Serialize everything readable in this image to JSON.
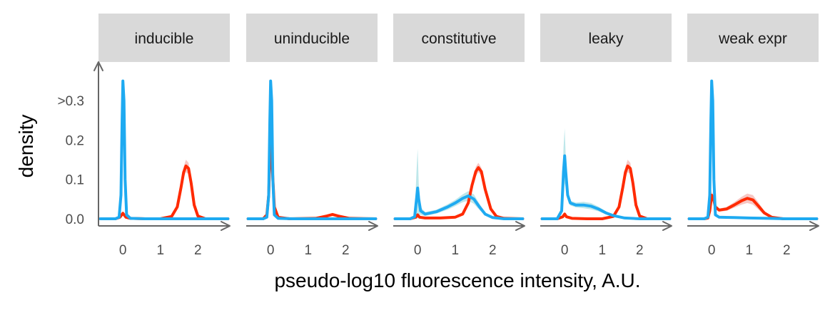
{
  "chart_data": {
    "type": "area",
    "xlabel": "pseudo-log10 fluorescence intensity, A.U.",
    "ylabel": "density",
    "xlim": [
      -0.65,
      2.85
    ],
    "ylim": [
      0,
      0.38
    ],
    "x_ticks": [
      {
        "value": 0,
        "label": "0"
      },
      {
        "value": 1,
        "label": "1"
      },
      {
        "value": 2,
        "label": "2"
      }
    ],
    "y_ticks": [
      {
        "value": 0.0,
        "label": "0.0"
      },
      {
        "value": 0.1,
        "label": "0.1"
      },
      {
        "value": 0.2,
        "label": "0.2"
      },
      {
        "value": 0.3,
        "label": ">0.3"
      }
    ],
    "colors": {
      "red": "#ff2a00",
      "blue": "#1eaaf1",
      "red_band": "#f4b4b0",
      "blue_band": "#a8dfe3",
      "strip": "#d9d9d9",
      "axis": "#666666"
    },
    "panels": [
      {
        "label": "inducible",
        "red": {
          "x": [
            -0.6,
            -0.2,
            -0.08,
            0.0,
            0.08,
            0.2,
            0.6,
            1.0,
            1.3,
            1.45,
            1.55,
            1.62,
            1.68,
            1.75,
            1.82,
            1.9,
            2.0,
            2.2,
            2.8
          ],
          "y": [
            0.0,
            0.0,
            0.004,
            0.014,
            0.004,
            0.001,
            0.0,
            0.0,
            0.006,
            0.03,
            0.08,
            0.118,
            0.134,
            0.128,
            0.09,
            0.035,
            0.007,
            0.0,
            0.0
          ],
          "band": [
            0,
            0,
            0.001,
            0.004,
            0.001,
            0,
            0,
            0,
            0.002,
            0.006,
            0.012,
            0.014,
            0.016,
            0.014,
            0.01,
            0.005,
            0.002,
            0,
            0
          ]
        },
        "blue": {
          "x": [
            -0.6,
            -0.2,
            -0.1,
            -0.05,
            -0.02,
            0.0,
            0.03,
            0.06,
            0.1,
            0.2,
            0.6,
            1.0,
            2.0,
            2.8
          ],
          "y": [
            0.0,
            0.0,
            0.004,
            0.06,
            0.25,
            0.35,
            0.3,
            0.1,
            0.01,
            0.001,
            0.0,
            0.0,
            0.0,
            0.0
          ],
          "band": [
            0,
            0,
            0.001,
            0.005,
            0.01,
            0.005,
            0.01,
            0.005,
            0.001,
            0,
            0,
            0,
            0,
            0
          ]
        }
      },
      {
        "label": "uninducible",
        "red": {
          "x": [
            -0.6,
            -0.2,
            -0.1,
            -0.05,
            0.0,
            0.05,
            0.1,
            0.2,
            0.5,
            1.2,
            1.5,
            1.65,
            1.8,
            2.1,
            2.8
          ],
          "y": [
            0.0,
            0.0,
            0.01,
            0.06,
            0.22,
            0.12,
            0.03,
            0.004,
            0.0,
            0.001,
            0.007,
            0.011,
            0.007,
            0.001,
            0.0
          ],
          "band": [
            0,
            0,
            0.002,
            0.006,
            0.01,
            0.006,
            0.002,
            0.001,
            0,
            0,
            0.002,
            0.002,
            0.002,
            0,
            0
          ]
        },
        "blue": {
          "x": [
            -0.6,
            -0.2,
            -0.1,
            -0.05,
            -0.02,
            0.0,
            0.03,
            0.06,
            0.1,
            0.2,
            0.6,
            1.0,
            2.0,
            2.8
          ],
          "y": [
            0.0,
            0.0,
            0.004,
            0.06,
            0.25,
            0.35,
            0.3,
            0.1,
            0.01,
            0.001,
            0.0,
            0.0,
            0.0,
            0.0
          ],
          "band": [
            0,
            0,
            0.001,
            0.005,
            0.01,
            0.005,
            0.01,
            0.005,
            0.001,
            0,
            0,
            0,
            0,
            0
          ]
        }
      },
      {
        "label": "constitutive",
        "red": {
          "x": [
            -0.6,
            -0.2,
            -0.05,
            0.0,
            0.05,
            0.2,
            0.6,
            1.0,
            1.2,
            1.35,
            1.45,
            1.55,
            1.62,
            1.7,
            1.8,
            1.95,
            2.1,
            2.3,
            2.8
          ],
          "y": [
            0.0,
            0.0,
            0.004,
            0.01,
            0.004,
            0.002,
            0.002,
            0.004,
            0.012,
            0.04,
            0.085,
            0.12,
            0.13,
            0.12,
            0.075,
            0.025,
            0.006,
            0.001,
            0.0
          ],
          "band": [
            0,
            0,
            0.001,
            0.002,
            0.001,
            0,
            0,
            0.001,
            0.003,
            0.006,
            0.01,
            0.012,
            0.012,
            0.01,
            0.008,
            0.004,
            0.002,
            0,
            0
          ]
        },
        "blue": {
          "x": [
            -0.6,
            -0.2,
            -0.08,
            -0.03,
            0.0,
            0.03,
            0.08,
            0.2,
            0.5,
            0.8,
            1.0,
            1.2,
            1.35,
            1.5,
            1.65,
            1.8,
            2.0,
            2.3,
            2.8
          ],
          "y": [
            0.0,
            0.0,
            0.005,
            0.05,
            0.078,
            0.05,
            0.02,
            0.012,
            0.018,
            0.03,
            0.04,
            0.052,
            0.058,
            0.05,
            0.03,
            0.012,
            0.003,
            0.0,
            0.0
          ],
          "band": [
            0,
            0,
            0.005,
            0.07,
            0.1,
            0.04,
            0.01,
            0.005,
            0.005,
            0.007,
            0.008,
            0.01,
            0.012,
            0.012,
            0.008,
            0.004,
            0.001,
            0,
            0
          ]
        }
      },
      {
        "label": "leaky",
        "red": {
          "x": [
            -0.6,
            -0.2,
            -0.05,
            0.0,
            0.05,
            0.2,
            0.6,
            1.0,
            1.3,
            1.45,
            1.55,
            1.62,
            1.68,
            1.75,
            1.82,
            1.9,
            2.0,
            2.2,
            2.8
          ],
          "y": [
            0.0,
            0.0,
            0.005,
            0.012,
            0.005,
            0.001,
            0.0,
            0.0,
            0.006,
            0.03,
            0.08,
            0.118,
            0.134,
            0.128,
            0.09,
            0.035,
            0.007,
            0.0,
            0.0
          ],
          "band": [
            0,
            0,
            0.001,
            0.003,
            0.001,
            0,
            0,
            0,
            0.002,
            0.006,
            0.012,
            0.014,
            0.016,
            0.014,
            0.01,
            0.005,
            0.002,
            0,
            0
          ]
        },
        "blue": {
          "x": [
            -0.6,
            -0.2,
            -0.08,
            -0.03,
            0.0,
            0.03,
            0.08,
            0.15,
            0.3,
            0.5,
            0.7,
            0.9,
            1.1,
            1.3,
            1.6,
            2.0,
            2.8
          ],
          "y": [
            0.0,
            0.0,
            0.02,
            0.12,
            0.16,
            0.12,
            0.06,
            0.04,
            0.035,
            0.035,
            0.032,
            0.025,
            0.015,
            0.008,
            0.002,
            0.0,
            0.0
          ],
          "band": [
            0,
            0,
            0.01,
            0.06,
            0.07,
            0.04,
            0.01,
            0.006,
            0.006,
            0.008,
            0.008,
            0.006,
            0.004,
            0.003,
            0.001,
            0,
            0
          ]
        }
      },
      {
        "label": "weak expr",
        "red": {
          "x": [
            -0.6,
            -0.2,
            -0.1,
            -0.05,
            0.0,
            0.05,
            0.1,
            0.2,
            0.4,
            0.6,
            0.8,
            0.95,
            1.1,
            1.25,
            1.4,
            1.6,
            1.9,
            2.8
          ],
          "y": [
            0.0,
            0.0,
            0.002,
            0.02,
            0.06,
            0.05,
            0.03,
            0.022,
            0.025,
            0.035,
            0.046,
            0.052,
            0.048,
            0.032,
            0.015,
            0.004,
            0.0,
            0.0
          ],
          "band": [
            0,
            0,
            0.001,
            0.005,
            0.01,
            0.008,
            0.005,
            0.004,
            0.005,
            0.007,
            0.01,
            0.012,
            0.012,
            0.009,
            0.005,
            0.002,
            0,
            0
          ]
        },
        "blue": {
          "x": [
            -0.6,
            -0.2,
            -0.1,
            -0.05,
            -0.02,
            0.0,
            0.03,
            0.06,
            0.1,
            0.2,
            0.6,
            1.0,
            1.5,
            2.0,
            2.8
          ],
          "y": [
            0.0,
            0.0,
            0.004,
            0.06,
            0.25,
            0.35,
            0.3,
            0.1,
            0.01,
            0.004,
            0.003,
            0.002,
            0.001,
            0.0,
            0.0
          ],
          "band": [
            0,
            0,
            0.001,
            0.005,
            0.01,
            0.005,
            0.01,
            0.005,
            0.001,
            0.001,
            0.001,
            0,
            0,
            0,
            0
          ]
        }
      }
    ]
  }
}
